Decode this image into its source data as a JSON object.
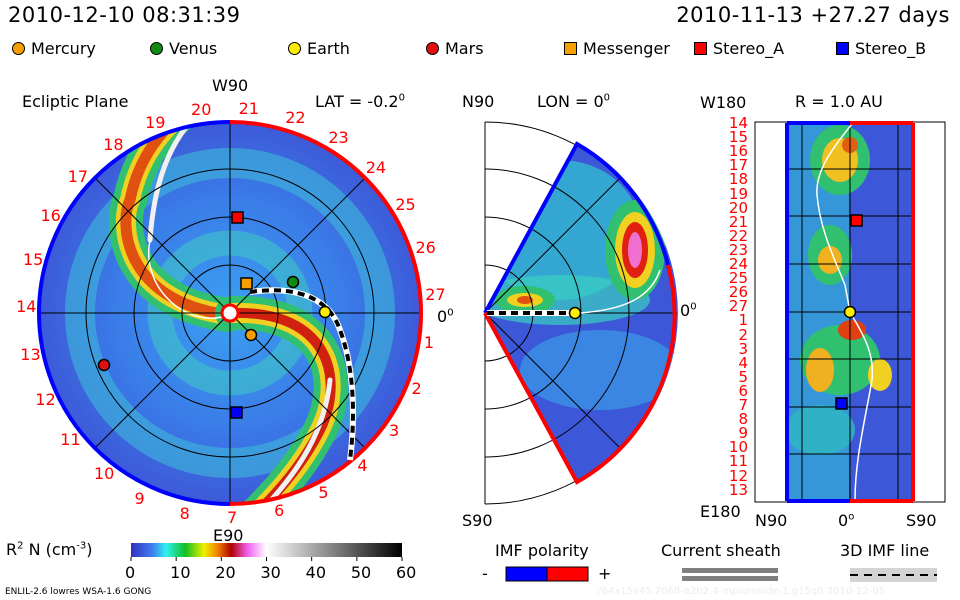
{
  "header": {
    "timestamp": "2010-12-10 08:31:39",
    "reference": "2010-11-13 +27.27 days"
  },
  "legend": [
    {
      "label": "Mercury",
      "shape": "circle",
      "color": "#f5a000"
    },
    {
      "label": "Venus",
      "shape": "circle",
      "color": "#118a11"
    },
    {
      "label": "Earth",
      "shape": "circle",
      "color": "#ffee00"
    },
    {
      "label": "Mars",
      "shape": "circle",
      "color": "#e01010"
    },
    {
      "label": "Messenger",
      "shape": "square",
      "color": "#f5a000"
    },
    {
      "label": "Stereo_A",
      "shape": "square",
      "color": "#ff0000"
    },
    {
      "label": "Stereo_B",
      "shape": "square",
      "color": "#0000ff"
    }
  ],
  "ecliptic_panel": {
    "title": "Ecliptic Plane",
    "top_label": "W90",
    "lat_label": "LAT = -0.2",
    "lat_unit": "0",
    "bottom_label": "E90",
    "right_label": "0",
    "right_unit": "0",
    "day_labels": [
      "1",
      "2",
      "3",
      "4",
      "5",
      "6",
      "7",
      "8",
      "9",
      "10",
      "11",
      "12",
      "13",
      "14",
      "15",
      "16",
      "17",
      "18",
      "19",
      "20",
      "21",
      "22",
      "23",
      "24",
      "25",
      "26",
      "27"
    ]
  },
  "meridional_panel": {
    "top_label": "N90",
    "lon_label": "LON = 0",
    "lon_unit": "0",
    "bottom_label": "S90",
    "right_label": "0",
    "right_unit": "0"
  },
  "radial_panel": {
    "title": "R = 1.0 AU",
    "top_left_label": "W180",
    "bottom_left_label": "E180",
    "x_labels": [
      "N90",
      "0",
      "S90"
    ],
    "x_unit": "o",
    "day_labels": [
      "14",
      "15",
      "16",
      "17",
      "18",
      "19",
      "20",
      "21",
      "22",
      "23",
      "24",
      "25",
      "26",
      "27",
      "1",
      "2",
      "3",
      "4",
      "5",
      "6",
      "7",
      "8",
      "9",
      "10",
      "11",
      "12",
      "13"
    ]
  },
  "colorbar": {
    "label": "R",
    "label_sup": "2",
    "label_rest": " N (cm",
    "label_exp": "-3",
    "label_end": ")",
    "ticks": [
      "0",
      "10",
      "20",
      "30",
      "40",
      "50",
      "60"
    ],
    "range": [
      0,
      60
    ]
  },
  "imf_polarity": {
    "label": "IMF polarity",
    "minus": "-",
    "plus": "+",
    "neg_color": "#0000ff",
    "pos_color": "#ff0000"
  },
  "current_sheath": {
    "label": "Current sheath"
  },
  "imf_line": {
    "label": "3D IMF line"
  },
  "footer": {
    "model": "ENLIL-2.6 lowres WSA-1.6 GONG",
    "run_id": "./64x15x45.2068-a2b2.4-mpiumnide-1.g15q0   2010-12-05"
  }
}
